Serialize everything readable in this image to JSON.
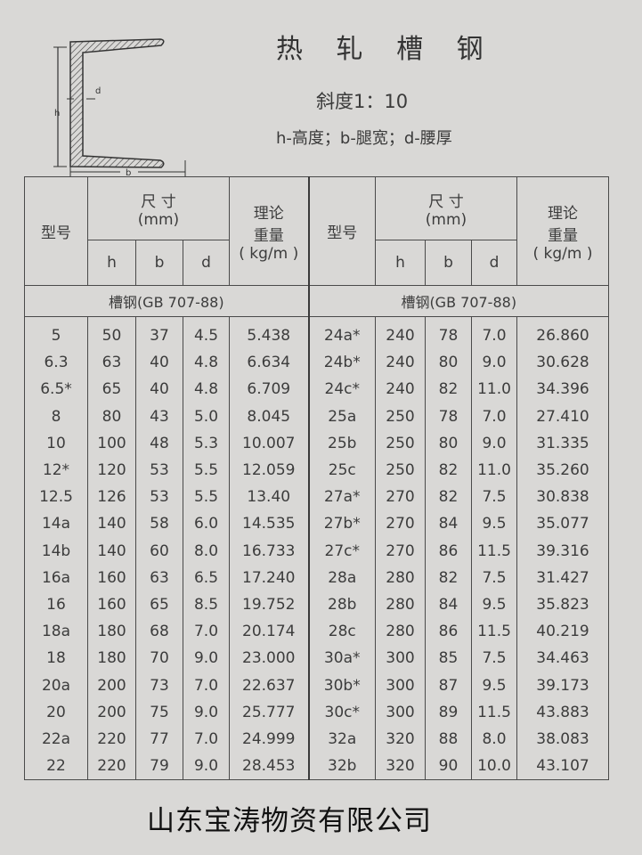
{
  "header": {
    "title": "热 轧 槽 钢",
    "slope": "斜度1：10",
    "legend": "h-高度；b-腿宽；d-腰厚",
    "diagram_labels": {
      "h": "h",
      "b": "b",
      "d": "d"
    }
  },
  "table": {
    "col_model": "型号",
    "col_size": "尺 寸",
    "col_size_unit": "(mm)",
    "col_h": "h",
    "col_b": "b",
    "col_d": "d",
    "col_weight": "理论",
    "col_weight2": "重量",
    "col_weight_unit": "( kg/m )",
    "standard": "槽钢(GB 707-88)",
    "left_rows": [
      [
        "5",
        "50",
        "37",
        "4.5",
        "5.438"
      ],
      [
        "6.3",
        "63",
        "40",
        "4.8",
        "6.634"
      ],
      [
        "6.5*",
        "65",
        "40",
        "4.8",
        "6.709"
      ],
      [
        "8",
        "80",
        "43",
        "5.0",
        "8.045"
      ],
      [
        "10",
        "100",
        "48",
        "5.3",
        "10.007"
      ],
      [
        "12*",
        "120",
        "53",
        "5.5",
        "12.059"
      ],
      [
        "12.5",
        "126",
        "53",
        "5.5",
        "13.40"
      ],
      [
        "14a",
        "140",
        "58",
        "6.0",
        "14.535"
      ],
      [
        "14b",
        "140",
        "60",
        "8.0",
        "16.733"
      ],
      [
        "16a",
        "160",
        "63",
        "6.5",
        "17.240"
      ],
      [
        "16",
        "160",
        "65",
        "8.5",
        "19.752"
      ],
      [
        "18a",
        "180",
        "68",
        "7.0",
        "20.174"
      ],
      [
        "18",
        "180",
        "70",
        "9.0",
        "23.000"
      ],
      [
        "20a",
        "200",
        "73",
        "7.0",
        "22.637"
      ],
      [
        "20",
        "200",
        "75",
        "9.0",
        "25.777"
      ],
      [
        "22a",
        "220",
        "77",
        "7.0",
        "24.999"
      ],
      [
        "22",
        "220",
        "79",
        "9.0",
        "28.453"
      ]
    ],
    "right_rows": [
      [
        "24a*",
        "240",
        "78",
        "7.0",
        "26.860"
      ],
      [
        "24b*",
        "240",
        "80",
        "9.0",
        "30.628"
      ],
      [
        "24c*",
        "240",
        "82",
        "11.0",
        "34.396"
      ],
      [
        "25a",
        "250",
        "78",
        "7.0",
        "27.410"
      ],
      [
        "25b",
        "250",
        "80",
        "9.0",
        "31.335"
      ],
      [
        "25c",
        "250",
        "82",
        "11.0",
        "35.260"
      ],
      [
        "27a*",
        "270",
        "82",
        "7.5",
        "30.838"
      ],
      [
        "27b*",
        "270",
        "84",
        "9.5",
        "35.077"
      ],
      [
        "27c*",
        "270",
        "86",
        "11.5",
        "39.316"
      ],
      [
        "28a",
        "280",
        "82",
        "7.5",
        "31.427"
      ],
      [
        "28b",
        "280",
        "84",
        "9.5",
        "35.823"
      ],
      [
        "28c",
        "280",
        "86",
        "11.5",
        "40.219"
      ],
      [
        "30a*",
        "300",
        "85",
        "7.5",
        "34.463"
      ],
      [
        "30b*",
        "300",
        "87",
        "9.5",
        "39.173"
      ],
      [
        "30c*",
        "300",
        "89",
        "11.5",
        "43.883"
      ],
      [
        "32a",
        "320",
        "88",
        "8.0",
        "38.083"
      ],
      [
        "32b",
        "320",
        "90",
        "10.0",
        "43.107"
      ]
    ]
  },
  "footer": {
    "company": "山东宝涛物资有限公司"
  }
}
